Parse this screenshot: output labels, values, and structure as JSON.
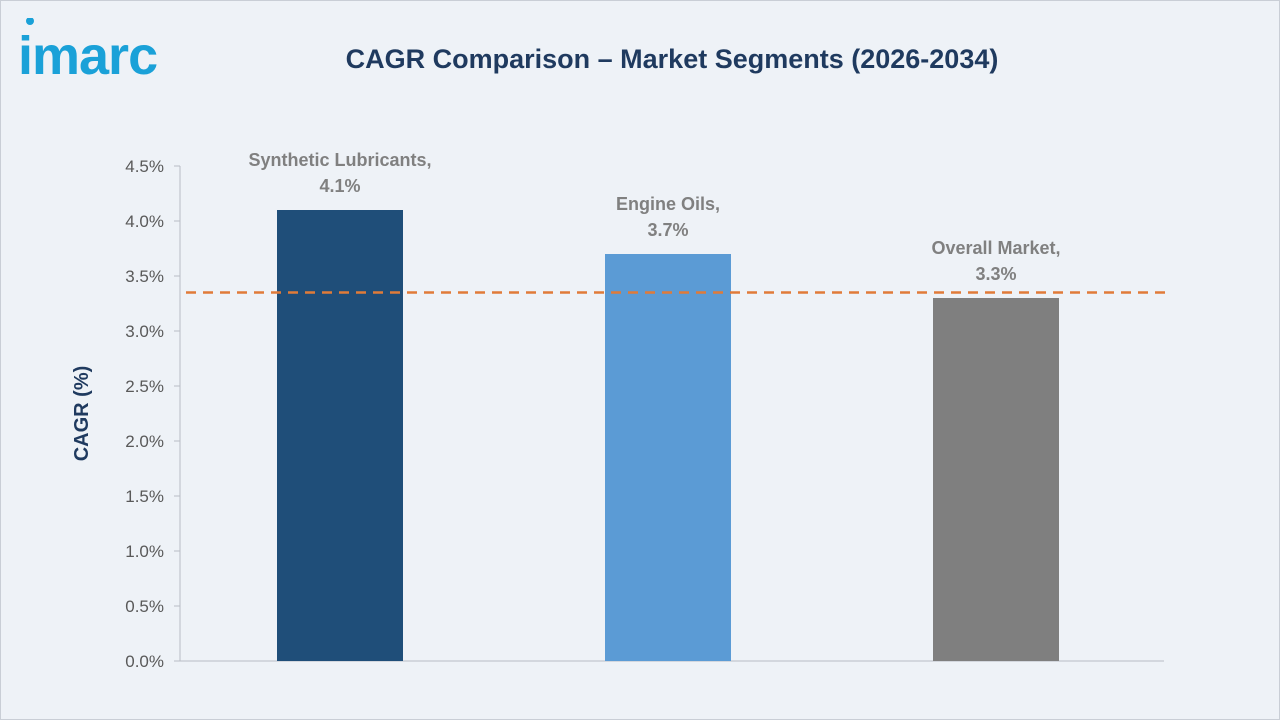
{
  "brand": {
    "logo_text": "imarc",
    "logo_color": "#1aa1d8"
  },
  "chart_data": {
    "type": "bar",
    "title": "CAGR Comparison – Market Segments (2026-2034)",
    "xlabel": "",
    "ylabel": "CAGR (%)",
    "ylim": [
      0,
      4.5
    ],
    "yticks": [
      "0.0%",
      "0.5%",
      "1.0%",
      "1.5%",
      "2.0%",
      "2.5%",
      "3.0%",
      "3.5%",
      "4.0%",
      "4.5%"
    ],
    "categories": [
      "Synthetic Lubricants",
      "Engine Oils",
      "Overall Market"
    ],
    "values": [
      4.1,
      3.7,
      3.3
    ],
    "data_labels": [
      [
        "Synthetic Lubricants,",
        "4.1%"
      ],
      [
        "Engine Oils,",
        "3.7%"
      ],
      [
        "Overall Market,",
        "3.3%"
      ]
    ],
    "colors": [
      "#1f4e79",
      "#5b9bd5",
      "#7f7f7f"
    ],
    "reference_line": {
      "value": 3.35,
      "style": "dashed",
      "color": "#e07b39"
    },
    "grid": false,
    "legend": "none"
  }
}
